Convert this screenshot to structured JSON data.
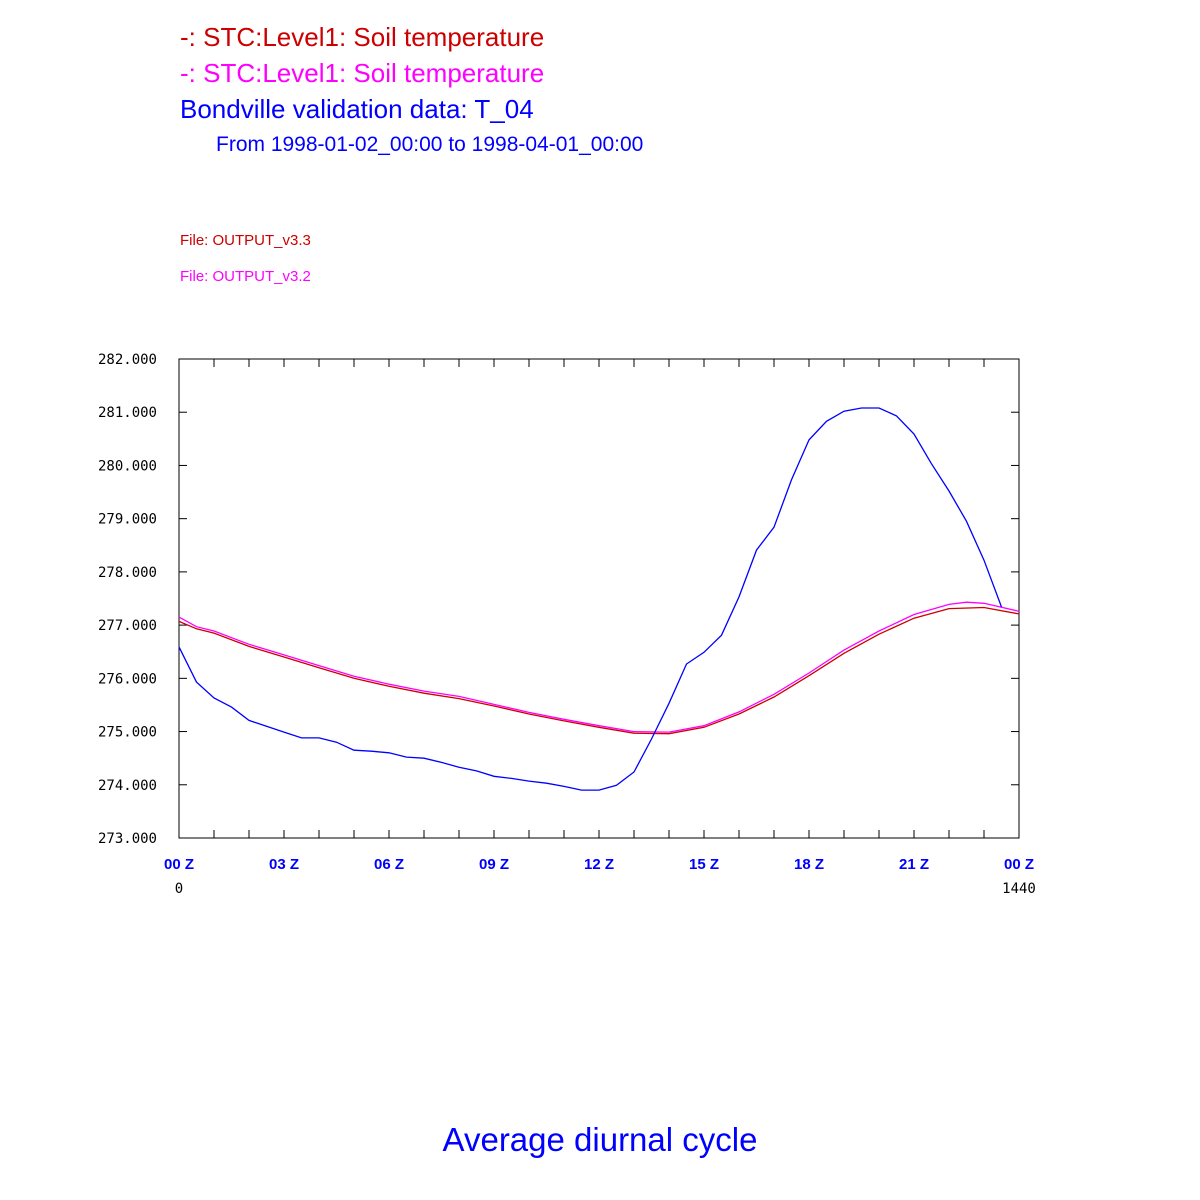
{
  "header": {
    "legend1": "-: STC:Level1: Soil temperature",
    "legend2": "-: STC:Level1: Soil temperature",
    "legend3": "Bondville validation data: T_04",
    "period": "From 1998-01-02_00:00 to 1998-04-01_00:00",
    "file1": "File: OUTPUT_v3.3",
    "file2": "File: OUTPUT_v3.2"
  },
  "footer": {
    "title": "Average diurnal cycle"
  },
  "colors": {
    "red": "#cc0000",
    "magenta": "#ff00ff",
    "blue": "#0000ff"
  },
  "chart_data": {
    "type": "line",
    "title": "Average diurnal cycle",
    "xlabel": "",
    "ylabel": "",
    "xlim": [
      0,
      24
    ],
    "ylim": [
      273,
      282
    ],
    "yticks": [
      "273.000",
      "274.000",
      "275.000",
      "276.000",
      "277.000",
      "278.000",
      "279.000",
      "280.000",
      "281.000",
      "282.000"
    ],
    "xticks": [
      "00 Z",
      "03 Z",
      "06 Z",
      "09 Z",
      "12 Z",
      "15 Z",
      "18 Z",
      "21 Z",
      "00 Z"
    ],
    "xnum_labels": [
      "0",
      "1440"
    ],
    "grid": false,
    "series": [
      {
        "name": "STC:Level1 OUTPUT_v3.3",
        "color": "#cc0000",
        "x": [
          0,
          0.5,
          1,
          2,
          3,
          4,
          5,
          6,
          7,
          8,
          9,
          10,
          11,
          12,
          13,
          14,
          15,
          16,
          17,
          18,
          19,
          20,
          21,
          22,
          23,
          24
        ],
        "y": [
          277.07,
          276.93,
          276.85,
          276.6,
          276.4,
          276.2,
          276.0,
          275.85,
          275.72,
          275.62,
          275.48,
          275.33,
          275.2,
          275.08,
          274.97,
          274.96,
          275.08,
          275.33,
          275.65,
          276.05,
          276.47,
          276.83,
          277.13,
          277.31,
          277.33,
          277.21
        ]
      },
      {
        "name": "STC:Level1 OUTPUT_v3.2",
        "color": "#ff00ff",
        "x": [
          0,
          0.5,
          1,
          2,
          3,
          4,
          5,
          6,
          7,
          8,
          9,
          10,
          11,
          12,
          13,
          14,
          15,
          16,
          17,
          18,
          19,
          20,
          21,
          22,
          22.5,
          23,
          24
        ],
        "y": [
          277.15,
          276.97,
          276.89,
          276.64,
          276.44,
          276.24,
          276.04,
          275.89,
          275.76,
          275.66,
          275.51,
          275.36,
          275.23,
          275.11,
          275.0,
          274.99,
          275.11,
          275.37,
          275.7,
          276.1,
          276.53,
          276.89,
          277.2,
          277.39,
          277.43,
          277.41,
          277.26
        ]
      },
      {
        "name": "Bondville validation data: T_04",
        "color": "#0000ff",
        "x": [
          0,
          0.5,
          1,
          1.5,
          2,
          2.5,
          3,
          3.5,
          4,
          4.5,
          5,
          5.5,
          6,
          6.5,
          7,
          7.5,
          8,
          8.5,
          9,
          9.5,
          10,
          10.5,
          11,
          11.5,
          12,
          12.5,
          13,
          13.5,
          14,
          14.5,
          15,
          15.5,
          16,
          16.5,
          17,
          17.5,
          18,
          18.5,
          19,
          19.5,
          20,
          20.5,
          21,
          21.5,
          22,
          22.5,
          23,
          23.5
        ],
        "y": [
          276.59,
          275.93,
          275.63,
          275.46,
          275.21,
          275.1,
          274.99,
          274.88,
          274.88,
          274.8,
          274.65,
          274.63,
          274.6,
          274.52,
          274.5,
          274.42,
          274.33,
          274.26,
          274.16,
          274.12,
          274.07,
          274.03,
          273.97,
          273.9,
          273.9,
          273.99,
          274.24,
          274.86,
          275.53,
          276.27,
          276.49,
          276.81,
          277.53,
          278.41,
          278.84,
          279.73,
          280.48,
          280.83,
          281.02,
          281.08,
          281.08,
          280.93,
          280.59,
          280.03,
          279.52,
          278.95,
          278.22,
          277.34
        ]
      }
    ]
  }
}
